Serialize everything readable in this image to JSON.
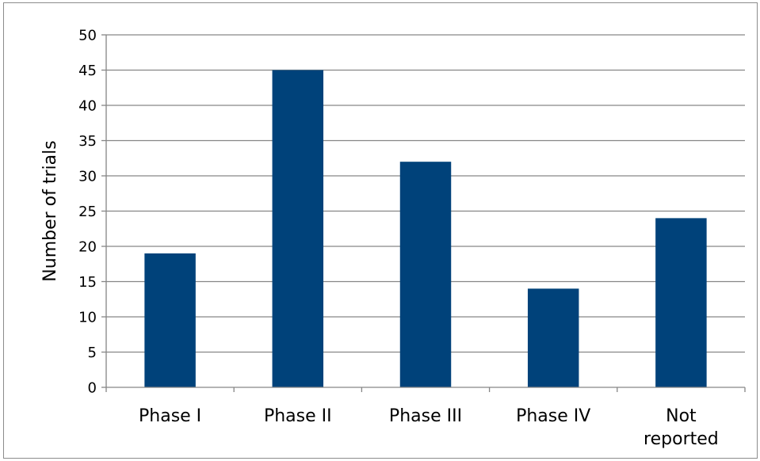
{
  "chart_data": {
    "type": "bar",
    "categories": [
      "Phase I",
      "Phase II",
      "Phase III",
      "Phase IV",
      "Not reported"
    ],
    "category_lines": [
      [
        "Phase I"
      ],
      [
        "Phase II"
      ],
      [
        "Phase III"
      ],
      [
        "Phase IV"
      ],
      [
        "Not",
        "reported"
      ]
    ],
    "values": [
      19,
      45,
      32,
      14,
      24
    ],
    "title": "",
    "xlabel": "",
    "ylabel": "Number of trials",
    "ylim": [
      0,
      50
    ],
    "yticks": [
      0,
      5,
      10,
      15,
      20,
      25,
      30,
      35,
      40,
      45,
      50
    ],
    "grid": true,
    "legend": "none",
    "bar_color": "#00427a",
    "grid_color": "#868686",
    "axis_color": "#868686"
  }
}
